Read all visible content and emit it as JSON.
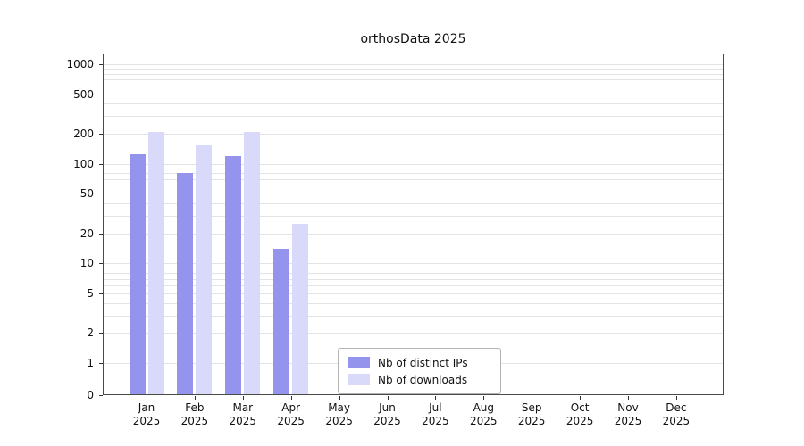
{
  "chart_data": {
    "type": "bar",
    "title": "orthosData 2025",
    "categories": [
      "Jan",
      "Feb",
      "Mar",
      "Apr",
      "May",
      "Jun",
      "Jul",
      "Aug",
      "Sep",
      "Oct",
      "Nov",
      "Dec"
    ],
    "year": "2025",
    "series": [
      {
        "name": "Nb of distinct IPs",
        "color": "#9494ec",
        "values": [
          125,
          80,
          120,
          14,
          0,
          0,
          0,
          0,
          0,
          0,
          0,
          0
        ]
      },
      {
        "name": "Nb of downloads",
        "color": "#d9daf9",
        "values": [
          210,
          155,
          210,
          25,
          0,
          0,
          0,
          0,
          0,
          0,
          0,
          0
        ]
      }
    ],
    "yscale": "symlog",
    "yticks": [
      0,
      1,
      2,
      5,
      10,
      20,
      50,
      100,
      200,
      500,
      1000
    ],
    "ylim": [
      0,
      1250
    ],
    "xlabel": "",
    "ylabel": "",
    "grid": "horizontal-minor-log",
    "legend_position": "lower-center"
  }
}
